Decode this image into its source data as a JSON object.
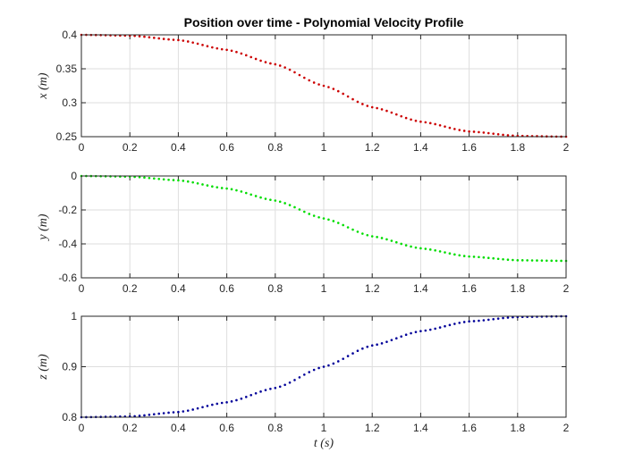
{
  "chart_data": [
    {
      "type": "scatter",
      "title": "Position over time - Polynomial Velocity Profile",
      "ylabel": "x (m)",
      "xlabel": "",
      "xlim": [
        0,
        2
      ],
      "ylim": [
        0.25,
        0.4
      ],
      "xticks": [
        "0",
        "0.2",
        "0.4",
        "0.6",
        "0.8",
        "1",
        "1.2",
        "1.4",
        "1.6",
        "1.8",
        "2"
      ],
      "yticks": [
        "0.25",
        "0.3",
        "0.35",
        "0.4"
      ],
      "ytick_values": [
        0.25,
        0.3,
        0.35,
        0.4
      ],
      "grid": true,
      "series": [
        {
          "color": "#cc0000",
          "marker": "dot",
          "points": [
            [
              0,
              0.4
            ],
            [
              0.2,
              0.3989
            ],
            [
              0.4,
              0.3923
            ],
            [
              0.6,
              0.3779
            ],
            [
              0.8,
              0.3566
            ],
            [
              1.0,
              0.325
            ],
            [
              1.2,
              0.2934
            ],
            [
              1.4,
              0.2721
            ],
            [
              1.6,
              0.2577
            ],
            [
              1.8,
              0.2511
            ],
            [
              2.0,
              0.25
            ]
          ]
        }
      ]
    },
    {
      "type": "scatter",
      "title": "",
      "ylabel": "y (m)",
      "xlabel": "",
      "xlim": [
        0,
        2
      ],
      "ylim": [
        -0.6,
        0
      ],
      "xticks": [
        "0",
        "0.2",
        "0.4",
        "0.6",
        "0.8",
        "1",
        "1.2",
        "1.4",
        "1.6",
        "1.8",
        "2"
      ],
      "yticks": [
        "-0.6",
        "-0.4",
        "-0.2",
        "0"
      ],
      "ytick_values": [
        -0.6,
        -0.4,
        -0.2,
        0
      ],
      "grid": true,
      "series": [
        {
          "color": "#00dd00",
          "marker": "dot",
          "points": [
            [
              0,
              0
            ],
            [
              0.2,
              -0.0036
            ],
            [
              0.4,
              -0.0256
            ],
            [
              0.6,
              -0.0738
            ],
            [
              0.8,
              -0.1448
            ],
            [
              1.0,
              -0.25
            ],
            [
              1.2,
              -0.3552
            ],
            [
              1.4,
              -0.4262
            ],
            [
              1.6,
              -0.4744
            ],
            [
              1.8,
              -0.4964
            ],
            [
              2.0,
              -0.5
            ]
          ]
        }
      ]
    },
    {
      "type": "scatter",
      "title": "",
      "ylabel": "z (m)",
      "xlabel": "t (s)",
      "xlim": [
        0,
        2
      ],
      "ylim": [
        0.8,
        1
      ],
      "xticks": [
        "0",
        "0.2",
        "0.4",
        "0.6",
        "0.8",
        "1",
        "1.2",
        "1.4",
        "1.6",
        "1.8",
        "2"
      ],
      "yticks": [
        "0.8",
        "0.9",
        "1"
      ],
      "ytick_values": [
        0.8,
        0.9,
        1.0
      ],
      "grid": true,
      "series": [
        {
          "color": "#000099",
          "marker": "dot",
          "points": [
            [
              0,
              0.8
            ],
            [
              0.2,
              0.8014
            ],
            [
              0.4,
              0.8102
            ],
            [
              0.6,
              0.8295
            ],
            [
              0.8,
              0.8579
            ],
            [
              1.0,
              0.9
            ],
            [
              1.2,
              0.9421
            ],
            [
              1.4,
              0.9705
            ],
            [
              1.6,
              0.9898
            ],
            [
              1.8,
              0.9986
            ],
            [
              2.0,
              1.0
            ]
          ]
        }
      ]
    }
  ]
}
